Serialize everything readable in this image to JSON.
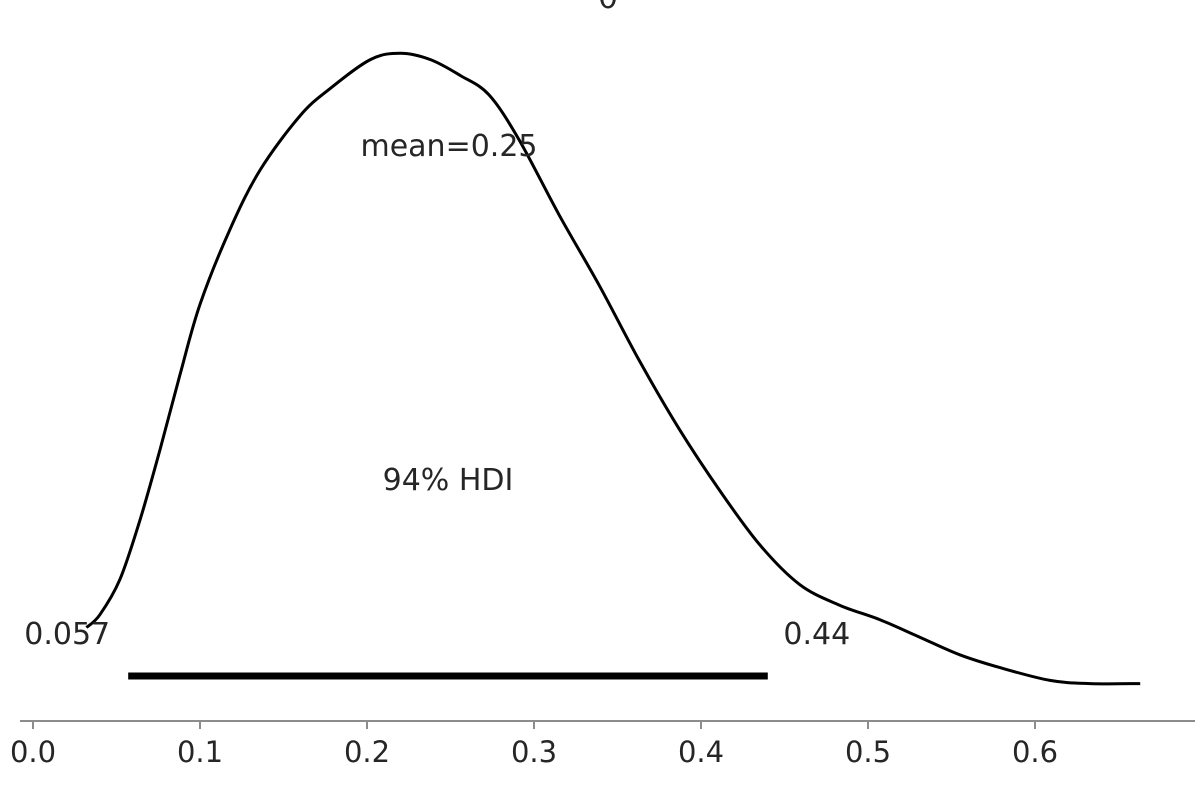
{
  "chart_data": {
    "type": "line",
    "title": "θ",
    "xlabel": "",
    "ylabel": "",
    "xlim": [
      -0.008,
      0.696
    ],
    "xticks": [
      0.0,
      0.1,
      0.2,
      0.3,
      0.4,
      0.5,
      0.6
    ],
    "xtick_labels": [
      "0.0",
      "0.1",
      "0.2",
      "0.3",
      "0.4",
      "0.5",
      "0.6"
    ],
    "grid": false,
    "y_axis_visible": false,
    "series": [
      {
        "x": [
          0.032,
          0.04,
          0.052,
          0.064,
          0.076,
          0.088,
          0.1,
          0.118,
          0.136,
          0.16,
          0.178,
          0.202,
          0.22,
          0.238,
          0.256,
          0.273,
          0.291,
          0.315,
          0.339,
          0.363,
          0.387,
          0.411,
          0.435,
          0.459,
          0.483,
          0.507,
          0.531,
          0.555,
          0.579,
          0.609,
          0.633,
          0.663
        ],
        "y": [
          0.39,
          0.47,
          0.69,
          1.06,
          1.5,
          1.97,
          2.41,
          2.88,
          3.25,
          3.59,
          3.76,
          3.94,
          3.98,
          3.94,
          3.84,
          3.72,
          3.44,
          2.97,
          2.53,
          2.06,
          1.63,
          1.25,
          0.91,
          0.66,
          0.53,
          0.44,
          0.33,
          0.22,
          0.14,
          0.06,
          0.04,
          0.04
        ],
        "color": "#000000"
      }
    ],
    "mean_label": "mean=0.25",
    "hdi": {
      "label": "94% HDI",
      "low": 0.057,
      "high": 0.44,
      "low_label": "0.057",
      "high_label": "0.44",
      "color": "#000000"
    },
    "axis_color": "#8c8c8c"
  }
}
